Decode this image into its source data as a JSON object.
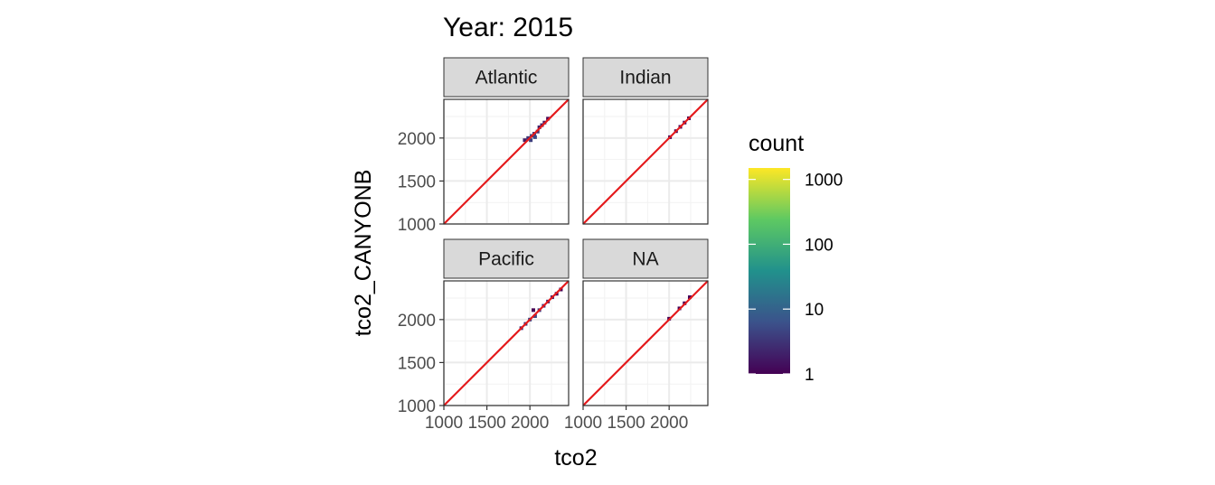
{
  "chart_data": {
    "type": "heatmap",
    "title": "Year: 2015",
    "xlabel": "tco2",
    "ylabel": "tco2_CANYONB",
    "xlim": [
      1000,
      2450
    ],
    "ylim": [
      1000,
      2450
    ],
    "x_ticks": [
      1000,
      1500,
      2000
    ],
    "y_ticks": [
      1000,
      1500,
      2000
    ],
    "grid": true,
    "facets": [
      {
        "label": "Atlantic",
        "bins": [
          {
            "x": 1940,
            "y": 1975,
            "count": 2
          },
          {
            "x": 1980,
            "y": 2000,
            "count": 3
          },
          {
            "x": 2010,
            "y": 1975,
            "count": 4
          },
          {
            "x": 2020,
            "y": 2025,
            "count": 4
          },
          {
            "x": 2050,
            "y": 2050,
            "count": 3
          },
          {
            "x": 2060,
            "y": 2010,
            "count": 5
          },
          {
            "x": 2090,
            "y": 2075,
            "count": 3
          },
          {
            "x": 2110,
            "y": 2125,
            "count": 2
          },
          {
            "x": 2140,
            "y": 2150,
            "count": 2
          },
          {
            "x": 2170,
            "y": 2180,
            "count": 2
          },
          {
            "x": 2210,
            "y": 2225,
            "count": 1
          }
        ]
      },
      {
        "label": "Indian",
        "bins": [
          {
            "x": 2010,
            "y": 2010,
            "count": 1
          },
          {
            "x": 2080,
            "y": 2080,
            "count": 1
          },
          {
            "x": 2130,
            "y": 2130,
            "count": 1
          },
          {
            "x": 2180,
            "y": 2180,
            "count": 1
          },
          {
            "x": 2230,
            "y": 2230,
            "count": 1
          }
        ]
      },
      {
        "label": "Pacific",
        "bins": [
          {
            "x": 1900,
            "y": 1900,
            "count": 2
          },
          {
            "x": 1950,
            "y": 1950,
            "count": 3
          },
          {
            "x": 2000,
            "y": 2000,
            "count": 4
          },
          {
            "x": 2040,
            "y": 2110,
            "count": 1
          },
          {
            "x": 2060,
            "y": 2040,
            "count": 5
          },
          {
            "x": 2110,
            "y": 2110,
            "count": 3
          },
          {
            "x": 2160,
            "y": 2160,
            "count": 3
          },
          {
            "x": 2210,
            "y": 2210,
            "count": 2
          },
          {
            "x": 2260,
            "y": 2260,
            "count": 2
          },
          {
            "x": 2310,
            "y": 2300,
            "count": 1
          },
          {
            "x": 2360,
            "y": 2350,
            "count": 1
          }
        ]
      },
      {
        "label": "NA",
        "bins": [
          {
            "x": 2000,
            "y": 2010,
            "count": 1
          },
          {
            "x": 2120,
            "y": 2130,
            "count": 1
          },
          {
            "x": 2180,
            "y": 2190,
            "count": 1
          },
          {
            "x": 2240,
            "y": 2260,
            "count": 1
          }
        ]
      }
    ],
    "reference_line": {
      "slope": 1,
      "intercept": 0,
      "color": "#e41a1c"
    },
    "legend": {
      "title": "count",
      "scale": "log10",
      "ticks": [
        1,
        10,
        100,
        1000
      ],
      "tick_labels": [
        "1",
        "10",
        "100",
        "1000"
      ],
      "range": [
        1,
        1500
      ],
      "palette": "viridis",
      "colors": [
        "#440154",
        "#3b528b",
        "#21918c",
        "#5ec962",
        "#fde725"
      ],
      "position": "right"
    }
  }
}
